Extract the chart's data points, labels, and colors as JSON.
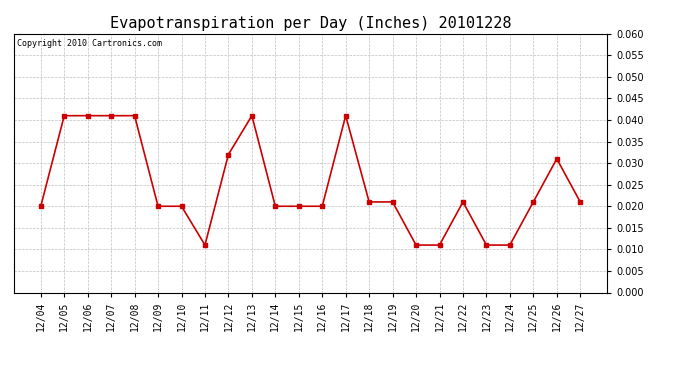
{
  "title": "Evapotranspiration per Day (Inches) 20101228",
  "copyright": "Copyright 2010 Cartronics.com",
  "x_labels": [
    "12/04",
    "12/05",
    "12/06",
    "12/07",
    "12/08",
    "12/09",
    "12/10",
    "12/11",
    "12/12",
    "12/13",
    "12/14",
    "12/15",
    "12/16",
    "12/17",
    "12/18",
    "12/19",
    "12/20",
    "12/21",
    "12/22",
    "12/23",
    "12/24",
    "12/25",
    "12/26",
    "12/27"
  ],
  "y_values": [
    0.02,
    0.041,
    0.041,
    0.041,
    0.041,
    0.02,
    0.02,
    0.011,
    0.032,
    0.041,
    0.02,
    0.02,
    0.02,
    0.041,
    0.021,
    0.021,
    0.011,
    0.011,
    0.021,
    0.011,
    0.011,
    0.021,
    0.031,
    0.021
  ],
  "line_color": "#cc0000",
  "marker": "s",
  "marker_size": 3,
  "ylim": [
    0.0,
    0.06
  ],
  "yticks": [
    0.0,
    0.005,
    0.01,
    0.015,
    0.02,
    0.025,
    0.03,
    0.035,
    0.04,
    0.045,
    0.05,
    0.055,
    0.06
  ],
  "background_color": "#ffffff",
  "plot_bg_color": "#ffffff",
  "grid_color": "#c0c0c0",
  "title_fontsize": 11,
  "copyright_fontsize": 6,
  "tick_fontsize": 7,
  "linewidth": 1.2
}
